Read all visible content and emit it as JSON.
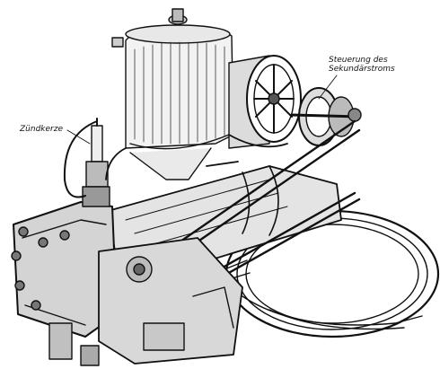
{
  "labels": {
    "spark_plug": "Zündkerze",
    "secondary_control_line1": "Steuerung des",
    "secondary_control_line2": "Sekundärstroms"
  }
}
